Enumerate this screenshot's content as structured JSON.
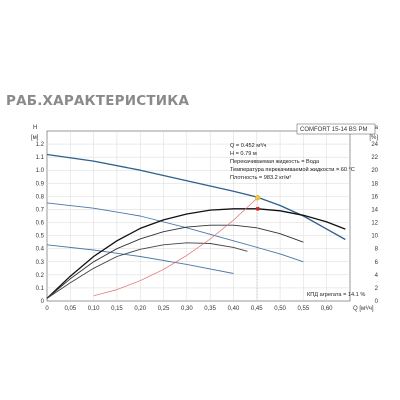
{
  "page_title": "РАБ.ХАРАКТЕРИСТИКА",
  "chart_data": {
    "type": "line",
    "model_label": "COMFORT 15-14 BS PM",
    "y_left_label_top": "H",
    "y_left_unit": "[м]",
    "y_right_label_top": "eta",
    "y_right_unit": "[%]",
    "x_unit": "Q [м³/ч]",
    "xlim": [
      0,
      0.65
    ],
    "ylim": [
      0,
      1.3
    ],
    "ylim_right": [
      0,
      26
    ],
    "x_ticks": [
      "0",
      "0,05",
      "0,10",
      "0,15",
      "0,20",
      "0,25",
      "0,30",
      "0,35",
      "0,40",
      "0,45",
      "0,50",
      "0,55",
      "0,60"
    ],
    "y_left_ticks": [
      "0",
      "0.1",
      "0.2",
      "0.3",
      "0.4",
      "0.5",
      "0.6",
      "0.7",
      "0.8",
      "0.9",
      "1.0",
      "1.1",
      "1.2"
    ],
    "y_right_ticks": [
      "0",
      "2",
      "4",
      "6",
      "8",
      "10",
      "12",
      "14",
      "16",
      "18",
      "20",
      "22",
      "24"
    ],
    "annotation_lines": [
      "Q = 0.452 м³/ч",
      "H = 0.79 м",
      "Перекачиваемая жидкость = Вода",
      "Температура перекачиваемой жидкости = 60 °C",
      "Плотность = 983.2 кг/м³"
    ],
    "efficiency_text": "КПД агрегата = 14.1 %",
    "operating_point": {
      "q": 0.452,
      "h": 0.79
    },
    "efficiency_point": {
      "q": 0.452,
      "eta": 14.1
    },
    "series": [
      {
        "role": "head-max",
        "color": "#2e5f8e",
        "points": [
          [
            0,
            1.12
          ],
          [
            0.1,
            1.07
          ],
          [
            0.2,
            1.0
          ],
          [
            0.3,
            0.92
          ],
          [
            0.4,
            0.84
          ],
          [
            0.45,
            0.795
          ],
          [
            0.5,
            0.73
          ],
          [
            0.55,
            0.65
          ],
          [
            0.6,
            0.55
          ],
          [
            0.64,
            0.47
          ]
        ]
      },
      {
        "role": "head-mid",
        "color": "#4a78a8",
        "points": [
          [
            0,
            0.75
          ],
          [
            0.1,
            0.71
          ],
          [
            0.2,
            0.65
          ],
          [
            0.3,
            0.56
          ],
          [
            0.4,
            0.46
          ],
          [
            0.5,
            0.36
          ],
          [
            0.55,
            0.3
          ]
        ]
      },
      {
        "role": "head-low",
        "color": "#4a78a8",
        "points": [
          [
            0,
            0.43
          ],
          [
            0.1,
            0.39
          ],
          [
            0.2,
            0.34
          ],
          [
            0.3,
            0.28
          ],
          [
            0.4,
            0.21
          ]
        ]
      },
      {
        "role": "efficiency-max",
        "color": "#111111",
        "axis": "right",
        "points": [
          [
            0,
            0.4
          ],
          [
            0.05,
            3.8
          ],
          [
            0.1,
            6.8
          ],
          [
            0.15,
            9.2
          ],
          [
            0.2,
            11.1
          ],
          [
            0.25,
            12.4
          ],
          [
            0.3,
            13.3
          ],
          [
            0.35,
            13.9
          ],
          [
            0.4,
            14.1
          ],
          [
            0.452,
            14.1
          ],
          [
            0.5,
            13.8
          ],
          [
            0.55,
            13.1
          ],
          [
            0.6,
            12.1
          ],
          [
            0.64,
            11.0
          ]
        ]
      },
      {
        "role": "efficiency-mid",
        "color": "#333333",
        "axis": "right",
        "points": [
          [
            0,
            0.4
          ],
          [
            0.05,
            3.4
          ],
          [
            0.1,
            6.0
          ],
          [
            0.15,
            8.0
          ],
          [
            0.2,
            9.5
          ],
          [
            0.25,
            10.6
          ],
          [
            0.3,
            11.3
          ],
          [
            0.35,
            11.6
          ],
          [
            0.4,
            11.6
          ],
          [
            0.45,
            11.2
          ],
          [
            0.5,
            10.3
          ],
          [
            0.55,
            9.0
          ]
        ]
      },
      {
        "role": "efficiency-low",
        "color": "#444444",
        "axis": "right",
        "points": [
          [
            0,
            0.4
          ],
          [
            0.05,
            2.8
          ],
          [
            0.1,
            5.0
          ],
          [
            0.15,
            6.8
          ],
          [
            0.2,
            7.9
          ],
          [
            0.25,
            8.6
          ],
          [
            0.3,
            8.9
          ],
          [
            0.35,
            8.8
          ],
          [
            0.4,
            8.2
          ],
          [
            0.43,
            7.6
          ]
        ]
      },
      {
        "role": "system-curve",
        "color": "#e46a6a",
        "points": [
          [
            0.1,
            0.04
          ],
          [
            0.15,
            0.087
          ],
          [
            0.2,
            0.155
          ],
          [
            0.25,
            0.242
          ],
          [
            0.3,
            0.349
          ],
          [
            0.35,
            0.474
          ],
          [
            0.4,
            0.619
          ],
          [
            0.452,
            0.79
          ]
        ]
      }
    ]
  }
}
